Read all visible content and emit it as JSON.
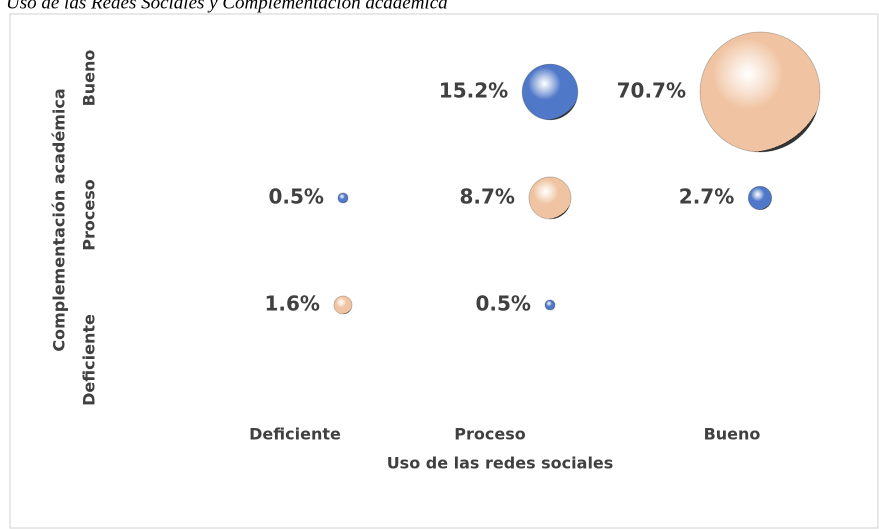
{
  "chart_data": {
    "type": "bubble",
    "title": "Uso de las Redes Sociales  y Complementación académica",
    "x_label": "Uso de las redes sociales",
    "y_label": "Complementación académica",
    "x_categories": [
      "Deficiente",
      "Proceso",
      "Bueno"
    ],
    "y_categories": [
      "Deficiente",
      "Proceso",
      "Bueno"
    ],
    "x": [
      "Proceso",
      "Bueno",
      "Deficiente",
      "Proceso",
      "Bueno",
      "Deficiente",
      "Proceso"
    ],
    "y": [
      "Bueno",
      "Bueno",
      "Proceso",
      "Proceso",
      "Proceso",
      "Deficiente",
      "Deficiente"
    ],
    "values": [
      15.2,
      70.7,
      0.5,
      8.7,
      2.7,
      1.6,
      0.5
    ],
    "value_labels": [
      "15.2%",
      "70.7%",
      "0.5%",
      "8.7%",
      "2.7%",
      "1.6%",
      "0.5%"
    ],
    "colors": [
      "#4f78c8",
      "#f0c4a2",
      "#4f78c8",
      "#f0c4a2",
      "#4f78c8",
      "#f0c4a2",
      "#4f78c8"
    ]
  }
}
